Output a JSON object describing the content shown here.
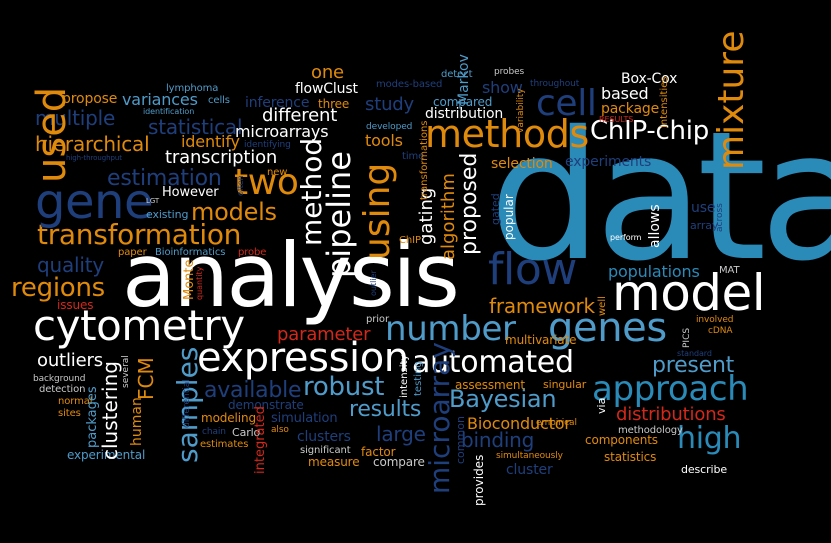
{
  "colors": {
    "background": "#000000",
    "white": "#ffffff",
    "blue": "#2a8ab8",
    "light_blue": "#4f9bc9",
    "navy": "#1f3f7c",
    "orange": "#e08a0c",
    "red": "#d3281a",
    "gray": "#c9c9c9"
  },
  "words": {
    "data": "data",
    "analysis": "analysis",
    "model": "model",
    "cytometry": "cytometry",
    "expression": "expression",
    "genes": "genes",
    "number": "number",
    "methods": "methods",
    "flow": "flow",
    "using": "using",
    "mixture": "mixture",
    "approach": "approach",
    "automated": "automated",
    "chip_chip": "ChIP-chip",
    "transformation": "transformation",
    "gene": "gene",
    "used": "used",
    "two": "two",
    "pipeline": "pipeline",
    "method": "method",
    "cell": "cell",
    "high": "high",
    "regions": "regions",
    "bayesian": "Bayesian",
    "robust": "robust",
    "available": "available",
    "results": "results",
    "samples": "samples",
    "microarray": "microarray",
    "models": "models",
    "estimation": "estimation",
    "present": "present",
    "distributions": "distributions",
    "framework": "framework",
    "populations": "populations",
    "parameter": "parameter",
    "clustering": "clustering",
    "outliers": "outliers",
    "fcm": "FCM",
    "large": "large",
    "binding": "binding",
    "bioconductor": "Bioconductor",
    "hierarchical": "hierarchical",
    "statistical": "statistical",
    "transcription": "transcription",
    "quality": "quality",
    "multiple": "multiple",
    "propose": "propose",
    "variances": "variances",
    "identify": "identify",
    "microarrays": "microarrays",
    "different": "different",
    "inference": "inference",
    "study": "study",
    "one": "one",
    "flowclust": "flowClust",
    "tools": "tools",
    "show": "show",
    "based": "based",
    "package": "package",
    "box_cox": "Box-Cox",
    "distribution": "distribution",
    "compared": "compared",
    "selection": "selection",
    "experiments": "experiments",
    "proposed": "proposed",
    "algorithm": "algorithm",
    "gating": "gating",
    "allows": "allows",
    "use": "use",
    "array": "array",
    "however": "However",
    "existing": "existing",
    "paper": "paper",
    "bioinformatics": "Bioinformatics",
    "probe": "probe",
    "monte": "Monte",
    "issues": "issues",
    "prior": "prior",
    "multivariate": "multivariate",
    "intensity": "intensity",
    "testing": "testing",
    "assessment": "assessment",
    "singular": "singular",
    "via": "via",
    "methodology": "methodology",
    "empirical": "empirical",
    "components": "components",
    "statistics": "statistics",
    "describe": "describe",
    "cluster": "cluster",
    "simultaneously": "simultaneously",
    "provides": "provides",
    "common": "common",
    "compare": "compare",
    "factor": "factor",
    "measure": "measure",
    "significant": "significant",
    "clusters": "clusters",
    "simulation": "simulation",
    "demonstrate": "demonstrate",
    "modeling": "modeling",
    "estimates": "estimates",
    "carlo": "Carlo",
    "chain": "chain",
    "also": "also",
    "integrated": "integrated",
    "human": "human",
    "packages": "packages",
    "sites": "sites",
    "normal": "normal",
    "detection": "detection",
    "background": "background",
    "experimental": "experimental",
    "several": "several",
    "differential": "differential",
    "lymphoma": "lymphoma",
    "cells": "cells",
    "identification": "identification",
    "three": "three",
    "identifying": "identifying",
    "developed": "developed",
    "detect": "detect",
    "modes_based": "modes-based",
    "markov": "Markov",
    "probes": "probes",
    "variability": "variability",
    "throughout": "throughout",
    "intensities": "intensities",
    "results_caps": "RESULTS",
    "time": "time",
    "transformations": "transformations",
    "often": "often",
    "new": "new",
    "lgt": "LGT",
    "high_throughput": "high-throughput",
    "gated": "gated",
    "popular": "popular",
    "perform": "perform",
    "across": "across",
    "well": "well",
    "mat": "MAT",
    "involved": "involved",
    "cdna": "cDNA",
    "pics": "PICS",
    "standard": "standard",
    "chip": "ChIP",
    "outlier": "outlier",
    "quantity": "quantity"
  }
}
